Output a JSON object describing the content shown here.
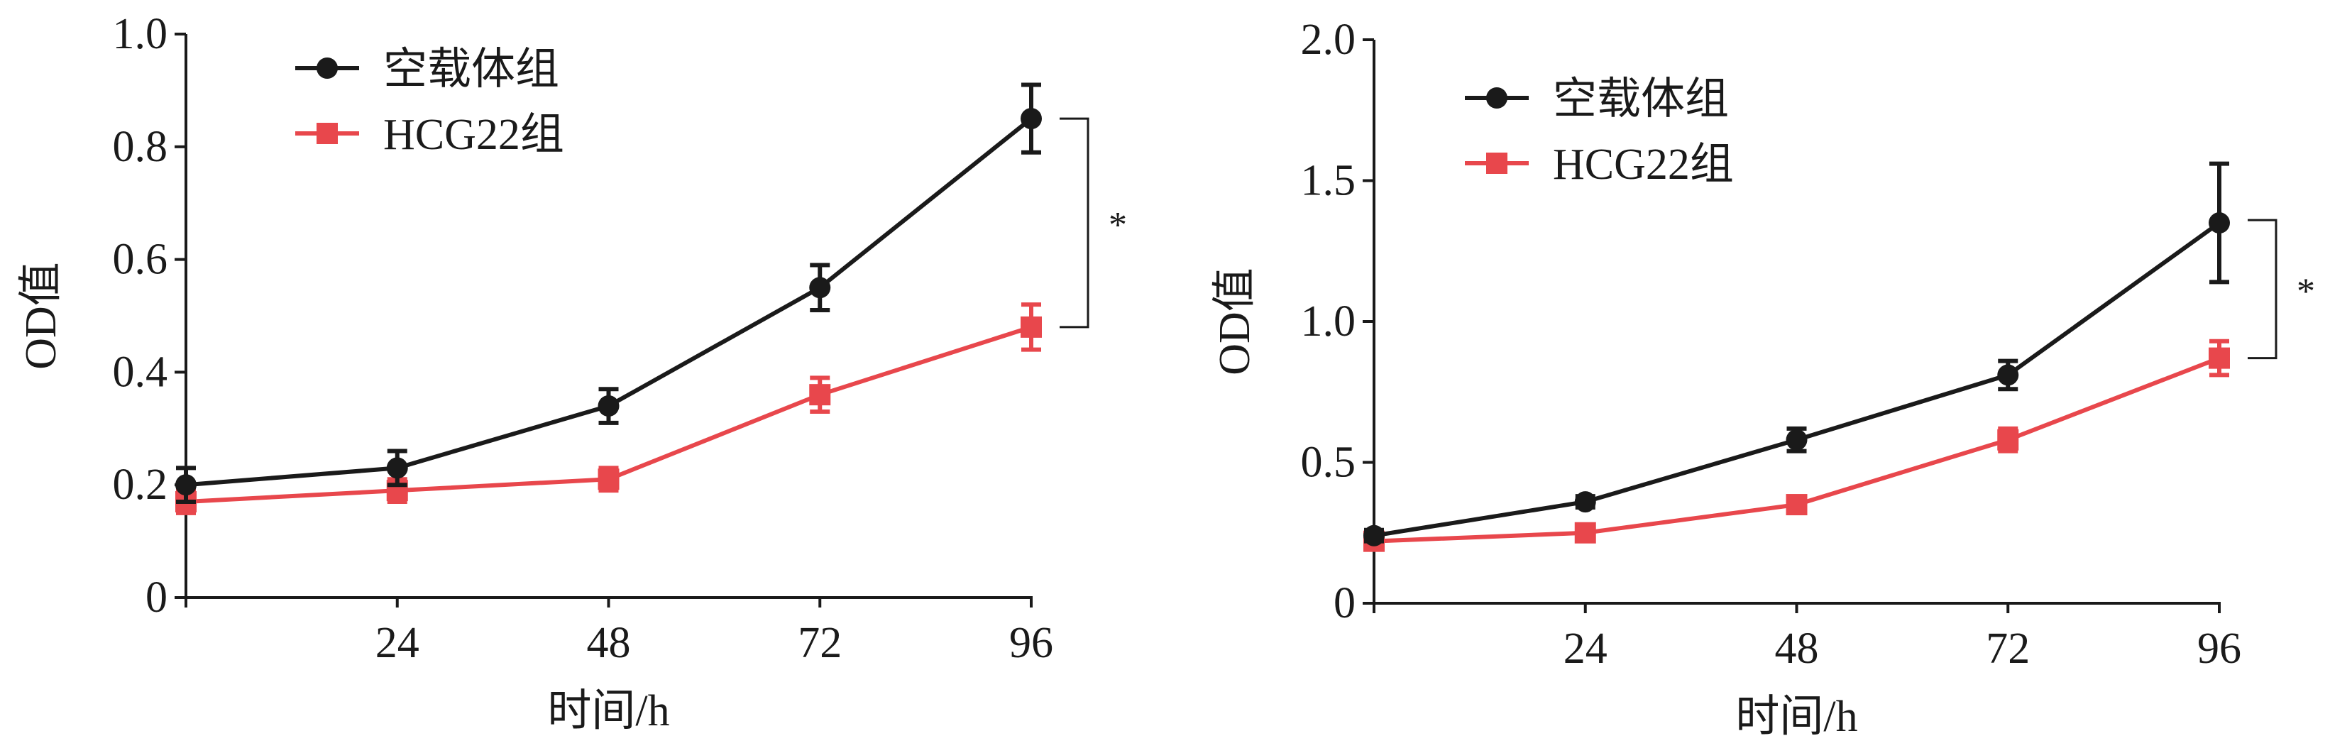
{
  "chart_data": [
    {
      "type": "line",
      "xlabel": "时间/h",
      "ylabel": "OD值",
      "x": [
        0,
        24,
        48,
        72,
        96
      ],
      "x_tick_labels": [
        "24",
        "48",
        "72",
        "96"
      ],
      "x_ticks": [
        24,
        48,
        72,
        96
      ],
      "xlim": [
        0,
        96
      ],
      "ylim": [
        0,
        1.0
      ],
      "y_ticks": [
        0,
        0.2,
        0.4,
        0.6,
        0.8,
        1.0
      ],
      "y_tick_labels": [
        "0",
        "0.2",
        "0.4",
        "0.6",
        "0.8",
        "1.0"
      ],
      "grid": false,
      "legend_position": "top-left",
      "series": [
        {
          "name": "空载体组",
          "color": "#1a1a1a",
          "marker": "circle",
          "values": [
            0.2,
            0.23,
            0.34,
            0.55,
            0.85
          ],
          "errors": [
            0.03,
            0.03,
            0.03,
            0.04,
            0.06
          ]
        },
        {
          "name": "HCG22组",
          "color": "#e8474c",
          "marker": "square",
          "values": [
            0.17,
            0.19,
            0.21,
            0.36,
            0.48
          ],
          "errors": [
            0.02,
            0.02,
            0.02,
            0.03,
            0.04
          ]
        }
      ],
      "significance": {
        "label": "*",
        "x": 96,
        "y_top": 0.85,
        "y_bottom": 0.48
      }
    },
    {
      "type": "line",
      "xlabel": "时间/h",
      "ylabel": "OD值",
      "x": [
        0,
        24,
        48,
        72,
        96
      ],
      "x_tick_labels": [
        "24",
        "48",
        "72",
        "96"
      ],
      "x_ticks": [
        24,
        48,
        72,
        96
      ],
      "xlim": [
        0,
        96
      ],
      "ylim": [
        0,
        2.0
      ],
      "y_ticks": [
        0,
        0.5,
        1.0,
        1.5,
        2.0
      ],
      "y_tick_labels": [
        "0",
        "0.5",
        "1.0",
        "1.5",
        "2.0"
      ],
      "grid": false,
      "legend_position": "top-left",
      "series": [
        {
          "name": "空载体组",
          "color": "#1a1a1a",
          "marker": "circle",
          "values": [
            0.24,
            0.36,
            0.58,
            0.81,
            1.35
          ],
          "errors": [
            0.02,
            0.02,
            0.04,
            0.05,
            0.21
          ]
        },
        {
          "name": "HCG22组",
          "color": "#e8474c",
          "marker": "square",
          "values": [
            0.22,
            0.25,
            0.35,
            0.58,
            0.87
          ],
          "errors": [
            0.02,
            0.02,
            0.02,
            0.04,
            0.06
          ]
        }
      ],
      "significance": {
        "label": "*",
        "x": 96,
        "y_top": 1.36,
        "y_bottom": 0.87
      }
    }
  ]
}
